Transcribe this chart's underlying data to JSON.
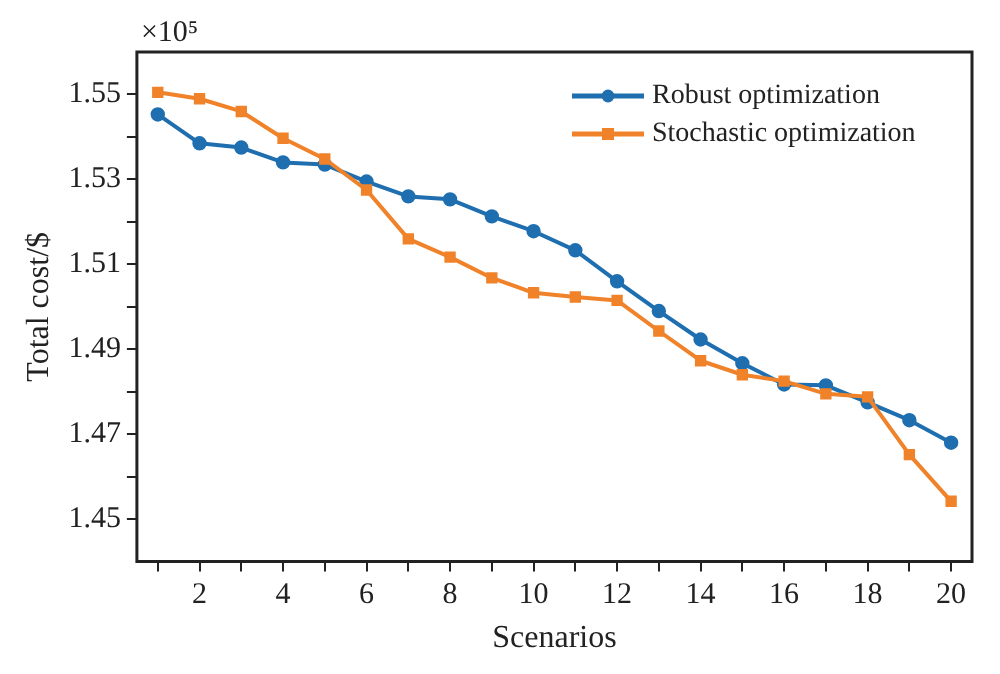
{
  "chart_data": {
    "type": "line",
    "xlabel": "Scenarios",
    "ylabel": "Total cost/$",
    "annotations": [
      "×10⁵"
    ],
    "x": [
      1,
      2,
      3,
      4,
      5,
      6,
      7,
      8,
      9,
      10,
      11,
      12,
      13,
      14,
      15,
      16,
      17,
      18,
      19,
      20
    ],
    "series": [
      {
        "name": "Robust optimization",
        "color": "#1f6fb0",
        "marker": "circle",
        "values": [
          1.5453,
          1.5385,
          1.5375,
          1.534,
          1.5335,
          1.5295,
          1.526,
          1.5253,
          1.5213,
          1.5178,
          1.5133,
          1.506,
          1.499,
          1.4923,
          1.4867,
          1.4817,
          1.4815,
          1.4775,
          1.4733,
          1.468
        ]
      },
      {
        "name": "Stochastic optimization",
        "color": "#f0822a",
        "marker": "square",
        "values": [
          1.5505,
          1.549,
          1.546,
          1.5397,
          1.5348,
          1.5275,
          1.516,
          1.5117,
          1.5068,
          1.5033,
          1.5023,
          1.5015,
          1.4943,
          1.4873,
          1.484,
          1.4825,
          1.4795,
          1.4788,
          1.4652,
          1.4542
        ]
      }
    ],
    "xlim": [
      0.5,
      20.5
    ],
    "xticks": [
      {
        "value": 1,
        "label": null
      },
      2,
      {
        "value": 3,
        "label": null
      },
      4,
      {
        "value": 5,
        "label": null
      },
      6,
      {
        "value": 7,
        "label": null
      },
      8,
      {
        "value": 9,
        "label": null
      },
      10,
      {
        "value": 11,
        "label": null
      },
      12,
      {
        "value": 13,
        "label": null
      },
      14,
      {
        "value": 15,
        "label": null
      },
      16,
      {
        "value": 17,
        "label": null
      },
      18,
      {
        "value": 19,
        "label": null
      },
      20
    ],
    "ylim": [
      1.44,
      1.56
    ],
    "yticks": [
      1.45,
      {
        "value": 1.46,
        "label": null
      },
      1.47,
      {
        "value": 1.48,
        "label": null
      },
      1.49,
      {
        "value": 1.5,
        "label": null
      },
      1.51,
      {
        "value": 1.52,
        "label": null
      },
      1.53,
      {
        "value": 1.54,
        "label": null
      },
      1.55
    ],
    "grid": false,
    "legend": "top right",
    "line_style": "solid"
  }
}
